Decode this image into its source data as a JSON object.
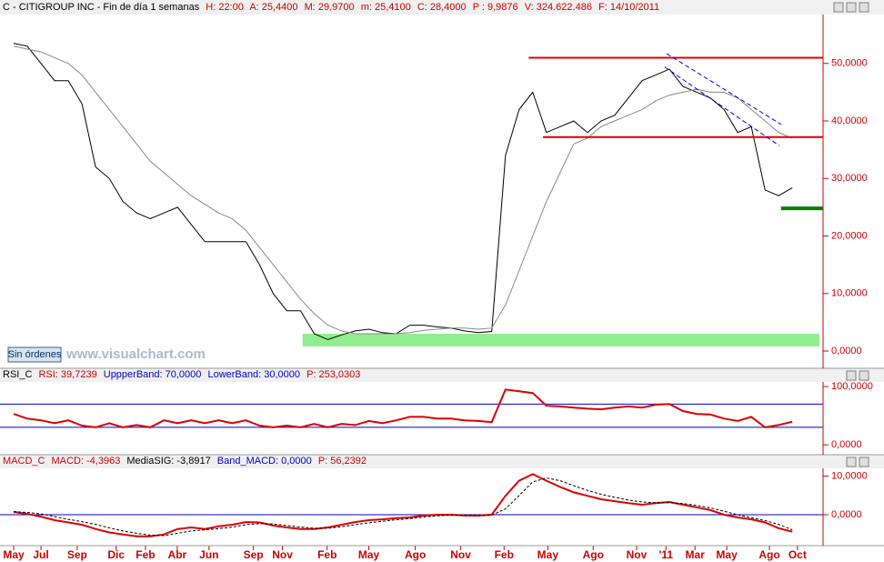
{
  "header": {
    "name": "C - CITIGROUP INC - Fin de día 1 semanas",
    "fields": [
      "H: 22:00",
      "A: 25,4400",
      "M: 29,9700",
      "m: 25,4100",
      "C: 28,4000",
      "P : 9,9876",
      "V: 324.622.486",
      "F: 14/10/2011"
    ]
  },
  "button": "Sin órdenes",
  "watermark": "www.visualchart.com",
  "chart_data": [
    {
      "type": "line",
      "x": [
        0,
        4,
        8,
        12,
        16,
        20,
        24,
        28,
        32,
        36,
        40,
        44,
        48,
        52,
        56,
        60,
        64,
        68,
        72,
        76,
        80,
        84,
        88,
        92,
        96,
        100,
        104,
        108,
        112,
        116,
        120,
        124,
        128,
        132,
        136,
        140,
        144,
        148,
        152,
        156,
        160,
        164,
        168,
        172,
        176,
        180,
        184,
        188,
        192,
        196,
        200,
        204,
        208,
        212,
        216,
        220,
        224,
        228
      ],
      "xlim": [
        -4,
        237
      ],
      "ylim": [
        -3,
        58.5
      ],
      "yticks": [
        {
          "value": 0,
          "label": "0,0000"
        },
        {
          "value": 10,
          "label": "10,0000"
        },
        {
          "value": 20,
          "label": "20,0000"
        },
        {
          "value": 30,
          "label": "30,0000"
        },
        {
          "value": 40,
          "label": "40,0000"
        },
        {
          "value": 50,
          "label": "50,0000"
        }
      ],
      "series": [
        {
          "color": "#000000",
          "values": [
            53.5,
            53,
            50,
            47,
            47,
            43,
            32,
            30,
            26,
            24,
            23,
            24,
            25,
            22,
            19,
            19,
            19,
            19,
            15,
            10,
            7,
            7,
            3,
            2,
            2.8,
            3.5,
            3.8,
            3.2,
            3,
            4.5,
            4.5,
            4.2,
            4,
            3.5,
            3.2,
            3.4,
            34,
            42,
            45,
            38,
            39,
            40,
            38,
            40,
            41,
            44,
            47,
            48,
            49,
            46,
            45,
            44,
            42,
            38,
            39,
            28,
            27,
            28.4
          ]
        },
        {
          "color": "#888888",
          "values": [
            53,
            52.5,
            52,
            51,
            50,
            48,
            45,
            42,
            39,
            36,
            33,
            31,
            29,
            27,
            25.5,
            24,
            23,
            21,
            18,
            15,
            12,
            9,
            6.5,
            4.5,
            3.5,
            3,
            3,
            3,
            3,
            3.2,
            3.6,
            3.8,
            4,
            4,
            3.8,
            4,
            8,
            14,
            20,
            26,
            31,
            36,
            37,
            39,
            40,
            41,
            42,
            43.5,
            44.5,
            45,
            45.5,
            45,
            45,
            44,
            42,
            40,
            38,
            37
          ]
        }
      ],
      "levels": [
        {
          "value": 51,
          "from": 150.8,
          "color": "#e00000"
        },
        {
          "value": 37.2,
          "from": 155,
          "color": "#e00000"
        },
        {
          "value": 24.8,
          "from": 224.7,
          "color": "#008000"
        }
      ],
      "zone": {
        "from": 84.6,
        "to": 235.9,
        "low": 0.8,
        "high": 3,
        "color": "#90ee90"
      },
      "channel": [
        [
          191.2,
          51.7,
          224.7,
          39.4
        ],
        [
          190.6,
          49.4,
          224.2,
          35.7
        ]
      ],
      "channel_color": "#0000cc"
    },
    {
      "type": "line",
      "header": [
        "RSI_C",
        "RSI: 39,7239",
        "UppperBand: 70,0000",
        "LowerBand: 30,0000",
        "P: 253,0303"
      ],
      "ylim": [
        -17,
        108
      ],
      "yticks": [
        {
          "value": 0,
          "label": "0,0000"
        },
        {
          "value": 100,
          "label": "100,0000"
        }
      ],
      "bands": [
        70,
        30
      ],
      "band_color": "#0000cc",
      "series": [
        {
          "color": "#dd0000",
          "values": [
            53,
            45,
            42,
            37,
            42,
            33,
            30,
            37,
            30,
            34,
            30,
            42,
            37,
            42,
            37,
            42,
            37,
            42,
            33,
            30,
            33,
            30,
            36,
            30,
            36,
            34,
            41,
            37,
            42,
            48,
            48,
            45,
            45,
            42,
            41,
            39,
            95,
            92,
            89,
            67,
            66,
            64,
            62,
            61,
            64,
            66,
            64,
            69,
            70,
            58,
            53,
            52,
            45,
            41,
            48,
            30,
            34,
            39.7
          ]
        }
      ]
    },
    {
      "type": "line",
      "header": [
        "MACD_C",
        "MACD: -4,3963",
        "MediaSIG: -3,8917",
        "Band_MACD: 0,0000",
        "P: 56,2392"
      ],
      "ylim": [
        -8,
        12
      ],
      "yticks": [
        {
          "value": 0,
          "label": "0,0000"
        },
        {
          "value": 10,
          "label": "10,0000"
        }
      ],
      "bands": [
        0
      ],
      "band_color": "#0000cc",
      "series": [
        {
          "color": "#dd0000",
          "values": [
            0.7,
            0.2,
            -0.5,
            -1.4,
            -2,
            -2.6,
            -3.7,
            -4.6,
            -5.1,
            -5.6,
            -5.6,
            -5.1,
            -3.7,
            -3.3,
            -3.7,
            -3,
            -2.6,
            -1.9,
            -2,
            -2.8,
            -3.3,
            -3.7,
            -3.7,
            -3.3,
            -2.6,
            -1.9,
            -1.4,
            -1.2,
            -0.9,
            -0.7,
            -0.2,
            0,
            0,
            -0.2,
            -0.2,
            0,
            4.9,
            8.8,
            10.5,
            8.8,
            7.2,
            5.8,
            4.9,
            4,
            3.5,
            3,
            2.6,
            3,
            3.3,
            2.6,
            1.9,
            1.2,
            0,
            -0.7,
            -1.2,
            -2,
            -3.5,
            -4.4
          ]
        },
        {
          "color": "#000000",
          "dashed": true,
          "values": [
            0.8,
            0.6,
            0.2,
            -0.5,
            -1.2,
            -1.8,
            -2.5,
            -3.4,
            -4.2,
            -4.8,
            -5.3,
            -5.4,
            -4.8,
            -4.2,
            -3.9,
            -3.6,
            -3.2,
            -2.6,
            -2.3,
            -2.4,
            -2.8,
            -3.2,
            -3.5,
            -3.5,
            -3.1,
            -2.6,
            -2.1,
            -1.7,
            -1.3,
            -1,
            -0.6,
            -0.3,
            -0.1,
            -0.1,
            -0.2,
            -0.1,
            1.5,
            5,
            8.5,
            9.5,
            8.8,
            7.5,
            6.3,
            5.3,
            4.5,
            3.8,
            3.3,
            3.1,
            3.1,
            2.9,
            2.4,
            1.8,
            0.9,
            0,
            -0.8,
            -1.5,
            -2.5,
            -3.9
          ]
        }
      ],
      "xticks": [
        {
          "value": 0,
          "label": "May"
        },
        {
          "value": 8,
          "label": "Jul"
        },
        {
          "value": 18.6,
          "label": "Sep"
        },
        {
          "value": 30,
          "label": "Dic"
        },
        {
          "value": 38.6,
          "label": "Feb"
        },
        {
          "value": 47.9,
          "label": "Abr"
        },
        {
          "value": 57.2,
          "label": "Jun"
        },
        {
          "value": 70.2,
          "label": "Sep"
        },
        {
          "value": 78.7,
          "label": "Nov"
        },
        {
          "value": 91.8,
          "label": "Feb"
        },
        {
          "value": 104,
          "label": "May"
        },
        {
          "value": 117.6,
          "label": "Ago"
        },
        {
          "value": 130.9,
          "label": "Nov"
        },
        {
          "value": 143.6,
          "label": "Feb"
        },
        {
          "value": 156.4,
          "label": "May"
        },
        {
          "value": 169.7,
          "label": "Ago"
        },
        {
          "value": 182.4,
          "label": "Nov"
        },
        {
          "value": 191,
          "label": "'11"
        },
        {
          "value": 199.5,
          "label": "Mar"
        },
        {
          "value": 208.8,
          "label": "May"
        },
        {
          "value": 221.3,
          "label": "Ago"
        },
        {
          "value": 229.5,
          "label": "Oct"
        }
      ]
    }
  ]
}
